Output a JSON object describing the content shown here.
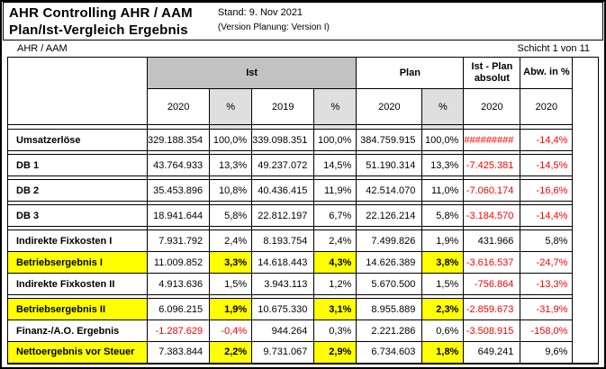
{
  "page": {
    "title_line1": "AHR Controlling AHR / AAM",
    "title_line2": "Plan/Ist-Vergleich Ergebnis",
    "stand": "Stand: 9. Nov 2021",
    "version": "(Version Planung: Version I)",
    "scope": "AHR / AAM",
    "sheet_indicator": "Schicht 1 von 11"
  },
  "colors": {
    "header_gray": "#c2c2c2",
    "highlight_yellow": "#ffff00",
    "negative_red": "#fe0000"
  },
  "table": {
    "groups": {
      "ist": "Ist",
      "plan": "Plan",
      "ist_plan": "Ist - Plan absolut",
      "abw": "Abw. in %"
    },
    "subheaders": [
      "2020",
      "%",
      "2019",
      "%",
      "2020",
      "%",
      "2020",
      "2020"
    ],
    "rows": [
      {
        "label": "Umsatzerlöse",
        "highlight": false,
        "spacer_after": true,
        "values": [
          "329.188.354",
          "100,0%",
          "339.098.351",
          "100,0%",
          "384.759.915",
          "100,0%",
          "#########",
          "-14,4%"
        ]
      },
      {
        "label": "DB 1",
        "highlight": false,
        "spacer_after": true,
        "values": [
          "43.764.933",
          "13,3%",
          "49.237.072",
          "14,5%",
          "51.190.314",
          "13,3%",
          "-7.425.381",
          "-14,5%"
        ]
      },
      {
        "label": "DB 2",
        "highlight": false,
        "spacer_after": true,
        "values": [
          "35.453.896",
          "10,8%",
          "40.436.415",
          "11,9%",
          "42.514.070",
          "11,0%",
          "-7.060.174",
          "-16,6%"
        ]
      },
      {
        "label": "DB 3",
        "highlight": false,
        "spacer_after": true,
        "values": [
          "18.941.644",
          "5,8%",
          "22.812.197",
          "6,7%",
          "22.126.214",
          "5,8%",
          "-3.184.570",
          "-14,4%"
        ]
      },
      {
        "label": "Indirekte Fixkosten I",
        "highlight": false,
        "spacer_after": false,
        "values": [
          "7.931.792",
          "2,4%",
          "8.193.754",
          "2,4%",
          "7.499.826",
          "1,9%",
          "431.966",
          "5,8%"
        ]
      },
      {
        "label": "Betriebsergebnis I",
        "highlight": true,
        "spacer_after": false,
        "values": [
          "11.009.852",
          "3,3%",
          "14.618.443",
          "4,3%",
          "14.626.389",
          "3,8%",
          "-3.616.537",
          "-24,7%"
        ]
      },
      {
        "label": "Indirekte Fixkosten II",
        "highlight": false,
        "spacer_after": true,
        "values": [
          "4.913.636",
          "1,5%",
          "3.943.113",
          "1,2%",
          "5.670.500",
          "1,5%",
          "-756.864",
          "-13,3%"
        ]
      },
      {
        "label": "Betriebsergebnis II",
        "highlight": true,
        "spacer_after": false,
        "values": [
          "6.096.215",
          "1,9%",
          "10.675.330",
          "3,1%",
          "8.955.889",
          "2,3%",
          "-2.859.673",
          "-31,9%"
        ]
      },
      {
        "label": "Finanz-/A.O. Ergebnis",
        "highlight": false,
        "spacer_after": false,
        "values": [
          "-1.287.629",
          "-0,4%",
          "944.264",
          "0,3%",
          "2.221.286",
          "0,6%",
          "-3.508.915",
          "-158,0%"
        ]
      },
      {
        "label": "Nettoergebnis vor Steuer",
        "highlight": true,
        "spacer_after": false,
        "values": [
          "7.383.844",
          "2,2%",
          "9.731.067",
          "2,9%",
          "6.734.603",
          "1,8%",
          "649.241",
          "9,6%"
        ]
      }
    ]
  }
}
